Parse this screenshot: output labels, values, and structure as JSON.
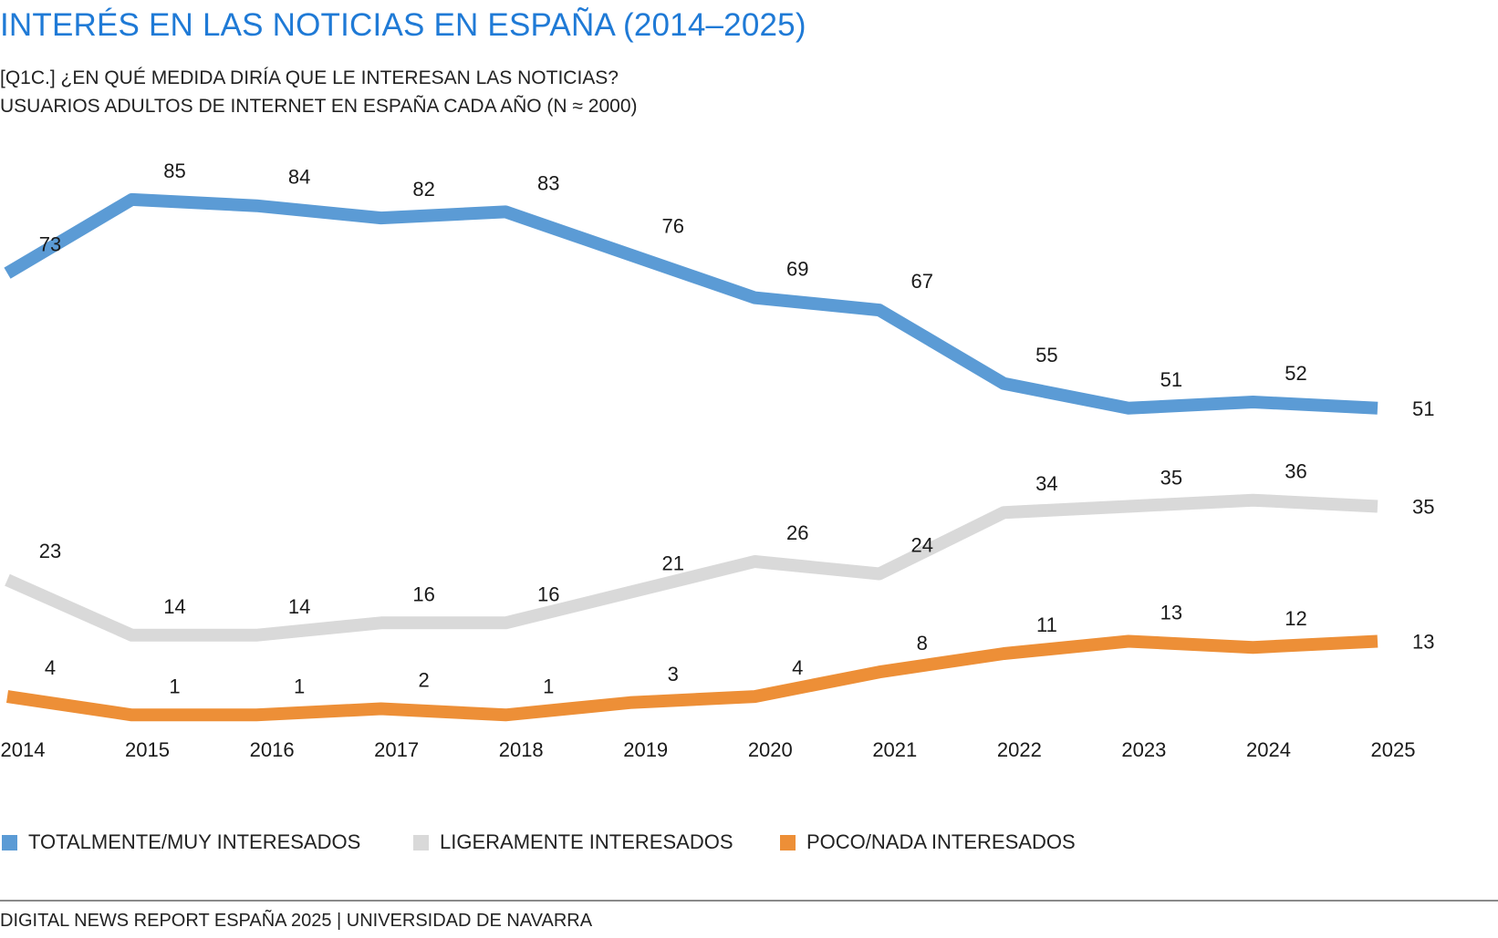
{
  "header": {
    "title": "INTERÉS EN LAS NOTICIAS EN ESPAÑA (2014–2025)",
    "subtitle_line1": "[Q1C.] ¿EN QUÉ MEDIDA DIRÍA QUE LE INTERESAN LAS NOTICIAS?",
    "subtitle_line2": "USUARIOS ADULTOS DE INTERNET EN ESPAÑA CADA AÑO (N ≈ 2000)"
  },
  "legend": [
    {
      "label": "TOTALMENTE/MUY INTERESADOS",
      "color": "#5b9bd5"
    },
    {
      "label": "LIGERAMENTE INTERESADOS",
      "color": "#d9d9d9"
    },
    {
      "label": "POCO/NADA INTERESADOS",
      "color": "#ed8f37"
    }
  ],
  "footer": {
    "source": "DIGITAL NEWS REPORT ESPAÑA 2025 | UNIVERSIDAD DE NAVARRA"
  },
  "chart_data": {
    "type": "line",
    "title": "INTERÉS EN LAS NOTICIAS EN ESPAÑA (2014–2025)",
    "x": [
      "2014",
      "2015",
      "2016",
      "2017",
      "2018",
      "2019",
      "2020",
      "2021",
      "2022",
      "2023",
      "2024",
      "2025"
    ],
    "xlabel": "",
    "ylabel": "",
    "ylim": [
      0,
      90
    ],
    "grid": false,
    "legend_position": "bottom",
    "series": [
      {
        "name": "TOTALMENTE/MUY INTERESADOS",
        "color": "#5b9bd5",
        "values": [
          73,
          85,
          84,
          82,
          83,
          76,
          69,
          67,
          55,
          51,
          52,
          51
        ]
      },
      {
        "name": "LIGERAMENTE INTERESADOS",
        "color": "#d9d9d9",
        "values": [
          23,
          14,
          14,
          16,
          16,
          21,
          26,
          24,
          34,
          35,
          36,
          35
        ]
      },
      {
        "name": "POCO/NADA INTERESADOS",
        "color": "#ed8f37",
        "values": [
          4,
          1,
          1,
          2,
          1,
          3,
          4,
          8,
          11,
          13,
          12,
          13
        ]
      }
    ]
  }
}
